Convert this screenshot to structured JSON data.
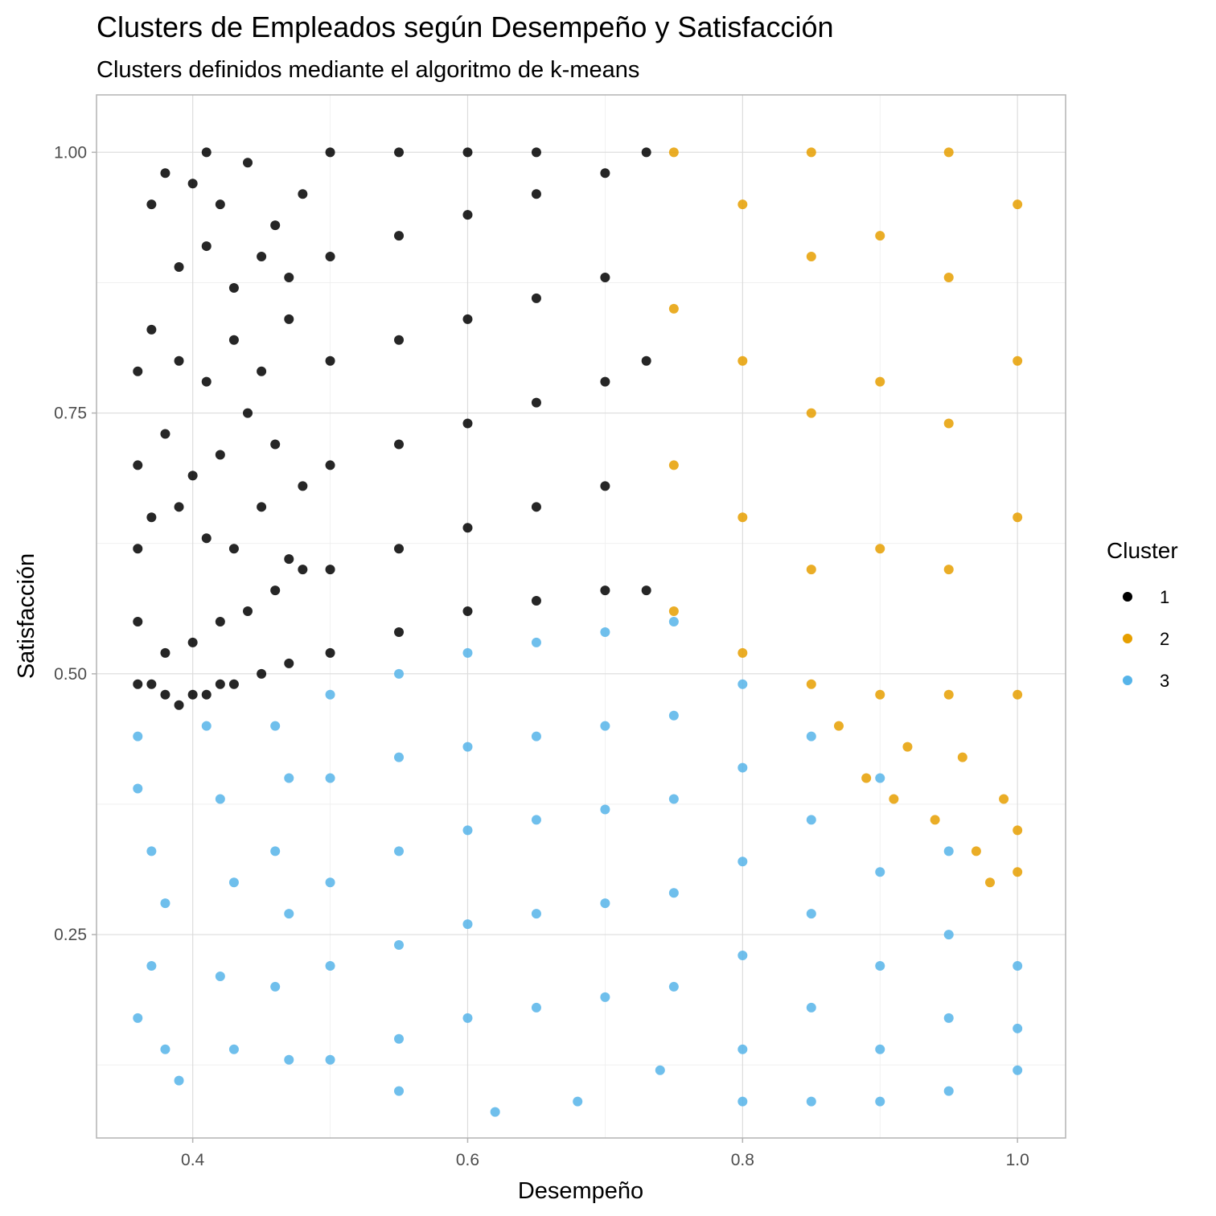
{
  "chart_data": {
    "type": "scatter",
    "title": "Clusters de Empleados según Desempeño y Satisfacción",
    "subtitle": "Clusters definidos mediante el algoritmo de k-means",
    "xlabel": "Desempeño",
    "ylabel": "Satisfacción",
    "xlim": [
      0.33,
      1.035
    ],
    "ylim": [
      0.055,
      1.055
    ],
    "x_ticks": [
      0.4,
      0.6,
      0.8,
      1.0
    ],
    "x_tick_labels": [
      "0.4",
      "0.6",
      "0.8",
      "1.0"
    ],
    "y_ticks": [
      0.25,
      0.5,
      0.75,
      1.0
    ],
    "y_tick_labels": [
      "0.25",
      "0.50",
      "0.75",
      "1.00"
    ],
    "grid": true,
    "legend": {
      "title": "Cluster",
      "placement": "right",
      "entries": [
        "1",
        "2",
        "3"
      ]
    },
    "series": [
      {
        "name": "1",
        "color": "#000000",
        "points": [
          [
            0.36,
            0.49
          ],
          [
            0.37,
            0.49
          ],
          [
            0.38,
            0.48
          ],
          [
            0.39,
            0.47
          ],
          [
            0.4,
            0.48
          ],
          [
            0.41,
            0.48
          ],
          [
            0.42,
            0.49
          ],
          [
            0.43,
            0.49
          ],
          [
            0.45,
            0.5
          ],
          [
            0.47,
            0.51
          ],
          [
            0.36,
            0.55
          ],
          [
            0.38,
            0.52
          ],
          [
            0.4,
            0.53
          ],
          [
            0.42,
            0.55
          ],
          [
            0.44,
            0.56
          ],
          [
            0.46,
            0.58
          ],
          [
            0.48,
            0.6
          ],
          [
            0.36,
            0.62
          ],
          [
            0.37,
            0.65
          ],
          [
            0.39,
            0.66
          ],
          [
            0.41,
            0.63
          ],
          [
            0.43,
            0.62
          ],
          [
            0.45,
            0.66
          ],
          [
            0.47,
            0.61
          ],
          [
            0.36,
            0.7
          ],
          [
            0.38,
            0.73
          ],
          [
            0.4,
            0.69
          ],
          [
            0.42,
            0.71
          ],
          [
            0.44,
            0.75
          ],
          [
            0.46,
            0.72
          ],
          [
            0.48,
            0.68
          ],
          [
            0.36,
            0.79
          ],
          [
            0.37,
            0.83
          ],
          [
            0.39,
            0.8
          ],
          [
            0.41,
            0.78
          ],
          [
            0.43,
            0.82
          ],
          [
            0.45,
            0.79
          ],
          [
            0.47,
            0.84
          ],
          [
            0.37,
            0.95
          ],
          [
            0.38,
            0.98
          ],
          [
            0.4,
            0.97
          ],
          [
            0.41,
            1.0
          ],
          [
            0.42,
            0.95
          ],
          [
            0.44,
            0.99
          ],
          [
            0.46,
            0.93
          ],
          [
            0.48,
            0.96
          ],
          [
            0.39,
            0.89
          ],
          [
            0.41,
            0.91
          ],
          [
            0.43,
            0.87
          ],
          [
            0.45,
            0.9
          ],
          [
            0.47,
            0.88
          ],
          [
            0.5,
            0.52
          ],
          [
            0.5,
            0.6
          ],
          [
            0.5,
            0.7
          ],
          [
            0.5,
            0.8
          ],
          [
            0.5,
            0.9
          ],
          [
            0.5,
            1.0
          ],
          [
            0.55,
            0.54
          ],
          [
            0.55,
            0.62
          ],
          [
            0.55,
            0.72
          ],
          [
            0.55,
            0.82
          ],
          [
            0.55,
            0.92
          ],
          [
            0.55,
            1.0
          ],
          [
            0.6,
            0.56
          ],
          [
            0.6,
            0.64
          ],
          [
            0.6,
            0.74
          ],
          [
            0.6,
            0.84
          ],
          [
            0.6,
            0.94
          ],
          [
            0.6,
            1.0
          ],
          [
            0.65,
            0.57
          ],
          [
            0.65,
            0.66
          ],
          [
            0.65,
            0.76
          ],
          [
            0.65,
            0.86
          ],
          [
            0.65,
            0.96
          ],
          [
            0.65,
            1.0
          ],
          [
            0.7,
            0.58
          ],
          [
            0.7,
            0.68
          ],
          [
            0.7,
            0.78
          ],
          [
            0.7,
            0.88
          ],
          [
            0.7,
            0.98
          ],
          [
            0.73,
            0.58
          ],
          [
            0.73,
            0.8
          ],
          [
            0.73,
            1.0
          ]
        ]
      },
      {
        "name": "2",
        "color": "#E69F00",
        "points": [
          [
            0.75,
            0.56
          ],
          [
            0.75,
            0.7
          ],
          [
            0.75,
            0.85
          ],
          [
            0.75,
            1.0
          ],
          [
            0.8,
            0.52
          ],
          [
            0.8,
            0.65
          ],
          [
            0.8,
            0.8
          ],
          [
            0.8,
            0.95
          ],
          [
            0.85,
            0.49
          ],
          [
            0.85,
            0.6
          ],
          [
            0.85,
            0.75
          ],
          [
            0.85,
            0.9
          ],
          [
            0.85,
            1.0
          ],
          [
            0.9,
            0.48
          ],
          [
            0.9,
            0.62
          ],
          [
            0.9,
            0.78
          ],
          [
            0.9,
            0.92
          ],
          [
            0.95,
            0.48
          ],
          [
            0.95,
            0.6
          ],
          [
            0.95,
            0.74
          ],
          [
            0.95,
            0.88
          ],
          [
            0.95,
            1.0
          ],
          [
            1.0,
            0.48
          ],
          [
            1.0,
            0.65
          ],
          [
            1.0,
            0.8
          ],
          [
            1.0,
            0.95
          ],
          [
            0.87,
            0.45
          ],
          [
            0.89,
            0.4
          ],
          [
            0.91,
            0.38
          ],
          [
            0.92,
            0.43
          ],
          [
            0.94,
            0.36
          ],
          [
            0.96,
            0.42
          ],
          [
            0.97,
            0.33
          ],
          [
            0.98,
            0.3
          ],
          [
            0.99,
            0.38
          ],
          [
            1.0,
            0.35
          ],
          [
            1.0,
            0.31
          ]
        ]
      },
      {
        "name": "3",
        "color": "#56B4E9",
        "points": [
          [
            0.36,
            0.44
          ],
          [
            0.36,
            0.39
          ],
          [
            0.37,
            0.33
          ],
          [
            0.38,
            0.28
          ],
          [
            0.37,
            0.22
          ],
          [
            0.36,
            0.17
          ],
          [
            0.38,
            0.14
          ],
          [
            0.39,
            0.11
          ],
          [
            0.41,
            0.45
          ],
          [
            0.42,
            0.38
          ],
          [
            0.43,
            0.3
          ],
          [
            0.42,
            0.21
          ],
          [
            0.43,
            0.14
          ],
          [
            0.46,
            0.45
          ],
          [
            0.47,
            0.4
          ],
          [
            0.46,
            0.33
          ],
          [
            0.47,
            0.27
          ],
          [
            0.46,
            0.2
          ],
          [
            0.47,
            0.13
          ],
          [
            0.5,
            0.48
          ],
          [
            0.5,
            0.4
          ],
          [
            0.5,
            0.3
          ],
          [
            0.5,
            0.22
          ],
          [
            0.5,
            0.13
          ],
          [
            0.55,
            0.5
          ],
          [
            0.55,
            0.42
          ],
          [
            0.55,
            0.33
          ],
          [
            0.55,
            0.24
          ],
          [
            0.55,
            0.15
          ],
          [
            0.55,
            0.1
          ],
          [
            0.6,
            0.52
          ],
          [
            0.6,
            0.43
          ],
          [
            0.6,
            0.35
          ],
          [
            0.6,
            0.26
          ],
          [
            0.6,
            0.17
          ],
          [
            0.62,
            0.08
          ],
          [
            0.65,
            0.53
          ],
          [
            0.65,
            0.44
          ],
          [
            0.65,
            0.36
          ],
          [
            0.65,
            0.27
          ],
          [
            0.65,
            0.18
          ],
          [
            0.7,
            0.54
          ],
          [
            0.7,
            0.45
          ],
          [
            0.7,
            0.37
          ],
          [
            0.7,
            0.28
          ],
          [
            0.7,
            0.19
          ],
          [
            0.68,
            0.09
          ],
          [
            0.75,
            0.55
          ],
          [
            0.75,
            0.46
          ],
          [
            0.75,
            0.38
          ],
          [
            0.75,
            0.29
          ],
          [
            0.75,
            0.2
          ],
          [
            0.74,
            0.12
          ],
          [
            0.8,
            0.49
          ],
          [
            0.8,
            0.41
          ],
          [
            0.8,
            0.32
          ],
          [
            0.8,
            0.23
          ],
          [
            0.8,
            0.14
          ],
          [
            0.8,
            0.09
          ],
          [
            0.85,
            0.44
          ],
          [
            0.85,
            0.36
          ],
          [
            0.85,
            0.27
          ],
          [
            0.85,
            0.18
          ],
          [
            0.85,
            0.09
          ],
          [
            0.9,
            0.4
          ],
          [
            0.9,
            0.31
          ],
          [
            0.9,
            0.22
          ],
          [
            0.9,
            0.14
          ],
          [
            0.9,
            0.09
          ],
          [
            0.95,
            0.33
          ],
          [
            0.95,
            0.25
          ],
          [
            0.95,
            0.17
          ],
          [
            0.95,
            0.1
          ],
          [
            1.0,
            0.22
          ],
          [
            1.0,
            0.16
          ],
          [
            1.0,
            0.12
          ]
        ]
      }
    ]
  }
}
